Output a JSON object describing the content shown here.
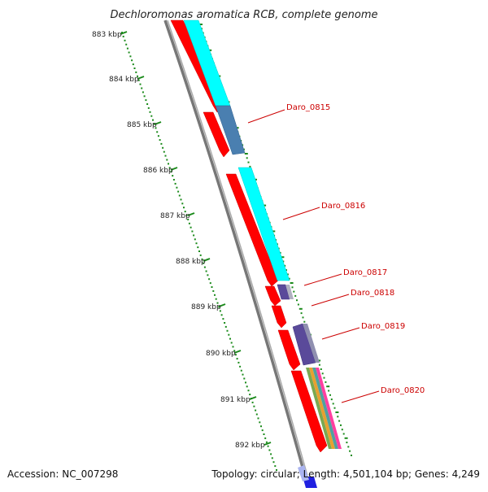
{
  "title": "Dechloromonas aromatica RCB, complete genome",
  "footer": {
    "accession": "Accession: NC_007298",
    "summary": "Topology: circular; Length: 4,501,104 bp; Genes: 4,249"
  },
  "ticks": [
    "883 kbp",
    "884 kbp",
    "885 kbp",
    "886 kbp",
    "887 kbp",
    "888 kbp",
    "889 kbp",
    "890 kbp",
    "891 kbp",
    "892 kbp"
  ],
  "genes": [
    "Daro_0815",
    "Daro_0816",
    "Daro_0817",
    "Daro_0818",
    "Daro_0819",
    "Daro_0820"
  ],
  "colors": {
    "cds": "#ff0000",
    "cyan_feature": "#00ffff",
    "blue_feature": "#4a7fb0",
    "purple_feature": "#5a4a9a",
    "backbone": "#777777",
    "tick": "#1a8a1a",
    "label": "#cc0000"
  }
}
